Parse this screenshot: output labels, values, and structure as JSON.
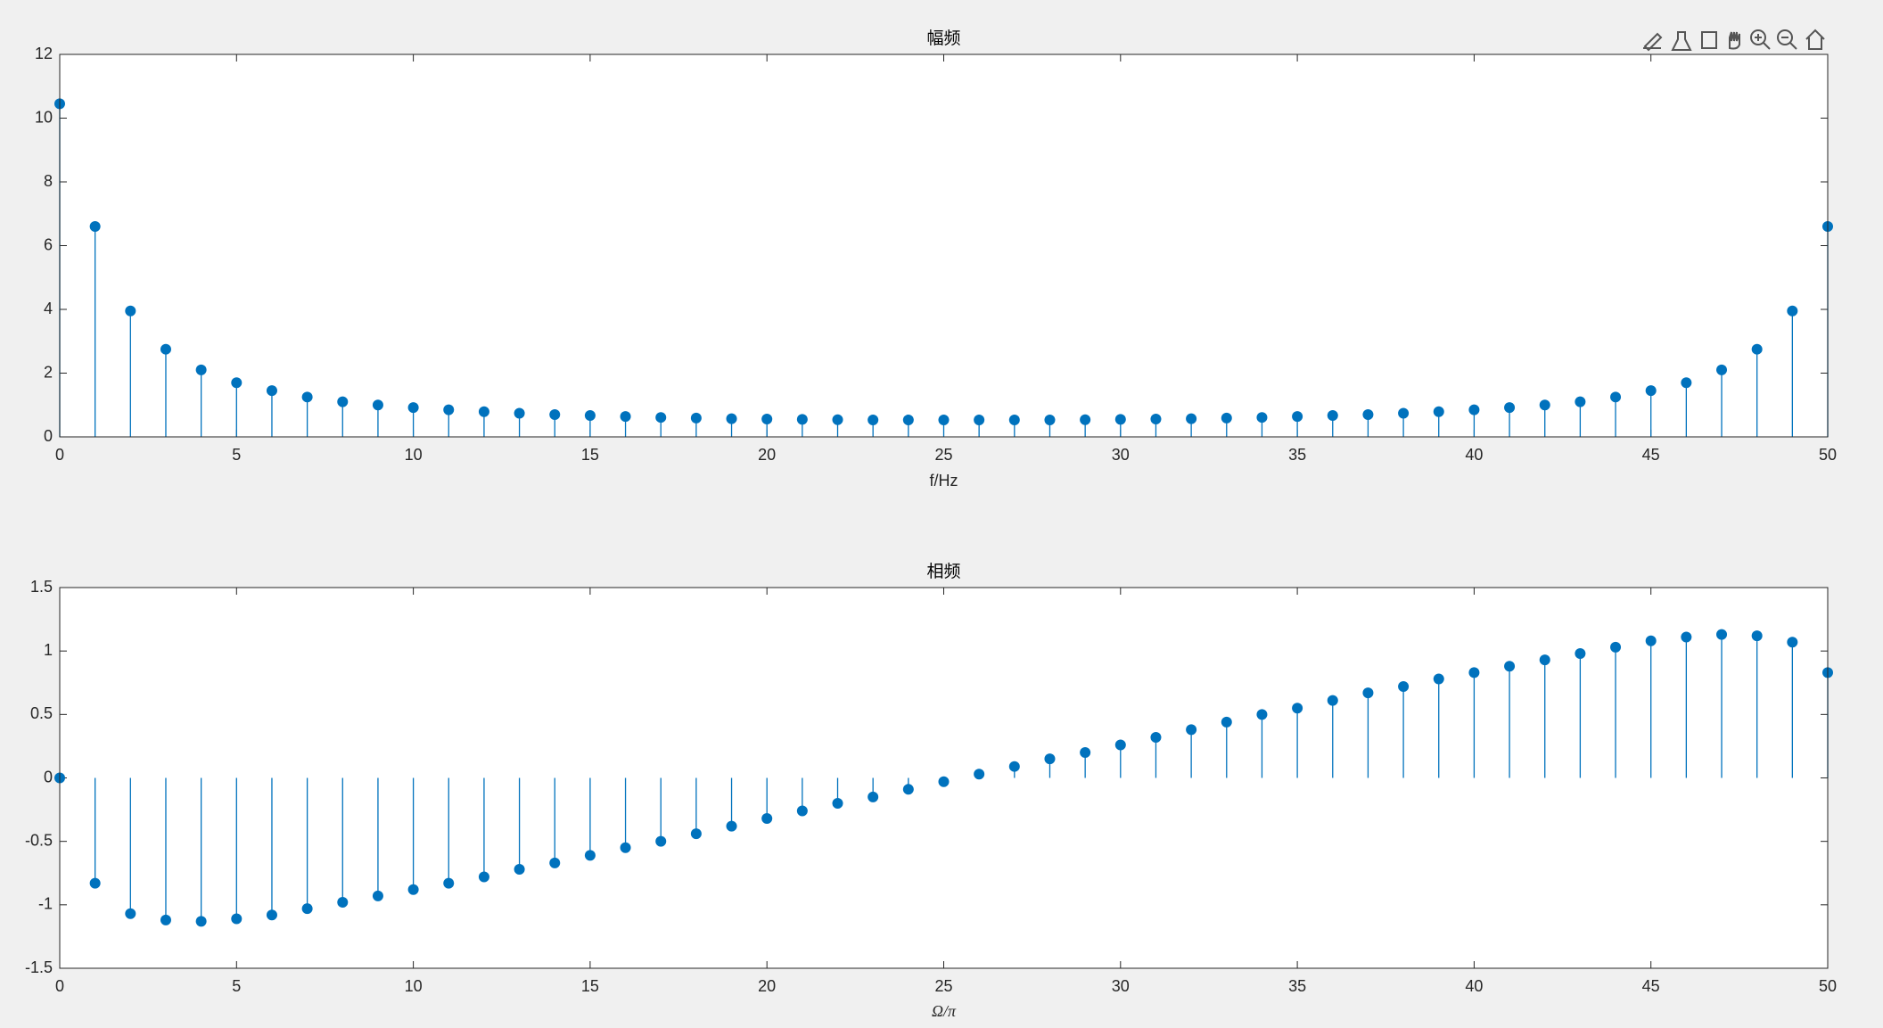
{
  "chart_data": [
    {
      "type": "stem",
      "title": "幅频",
      "xlabel": "f/Hz",
      "color": "#0072bd",
      "x": [
        0,
        1,
        2,
        3,
        4,
        5,
        6,
        7,
        8,
        9,
        10,
        11,
        12,
        13,
        14,
        15,
        16,
        17,
        18,
        19,
        20,
        21,
        22,
        23,
        24,
        25,
        26,
        27,
        28,
        29,
        30,
        31,
        32,
        33,
        34,
        35,
        36,
        37,
        38,
        39,
        40,
        41,
        42,
        43,
        44,
        45,
        46,
        47,
        48,
        49,
        50
      ],
      "values": [
        10.45,
        6.6,
        3.95,
        2.75,
        2.1,
        1.7,
        1.45,
        1.25,
        1.1,
        1.0,
        0.92,
        0.85,
        0.79,
        0.74,
        0.7,
        0.67,
        0.64,
        0.61,
        0.59,
        0.57,
        0.56,
        0.55,
        0.54,
        0.53,
        0.53,
        0.53,
        0.53,
        0.53,
        0.53,
        0.54,
        0.55,
        0.56,
        0.57,
        0.59,
        0.61,
        0.64,
        0.67,
        0.7,
        0.74,
        0.79,
        0.85,
        0.92,
        1.0,
        1.1,
        1.25,
        1.45,
        1.7,
        2.1,
        2.75,
        3.95,
        6.6
      ],
      "xlim": [
        0,
        50
      ],
      "xticks": [
        0,
        5,
        10,
        15,
        20,
        25,
        30,
        35,
        40,
        45,
        50
      ],
      "ylim": [
        0,
        12
      ],
      "yticks": [
        0,
        2,
        4,
        6,
        8,
        10,
        12
      ]
    },
    {
      "type": "stem",
      "title": "相频",
      "xlabel": "Ω/π",
      "color": "#0072bd",
      "x": [
        0,
        1,
        2,
        3,
        4,
        5,
        6,
        7,
        8,
        9,
        10,
        11,
        12,
        13,
        14,
        15,
        16,
        17,
        18,
        19,
        20,
        21,
        22,
        23,
        24,
        25,
        26,
        27,
        28,
        29,
        30,
        31,
        32,
        33,
        34,
        35,
        36,
        37,
        38,
        39,
        40,
        41,
        42,
        43,
        44,
        45,
        46,
        47,
        48,
        49,
        50
      ],
      "values": [
        0,
        -0.83,
        -1.07,
        -1.12,
        -1.13,
        -1.11,
        -1.08,
        -1.03,
        -0.98,
        -0.93,
        -0.88,
        -0.83,
        -0.78,
        -0.72,
        -0.67,
        -0.61,
        -0.55,
        -0.5,
        -0.44,
        -0.38,
        -0.32,
        -0.26,
        -0.2,
        -0.15,
        -0.09,
        -0.03,
        0.03,
        0.09,
        0.15,
        0.2,
        0.26,
        0.32,
        0.38,
        0.44,
        0.5,
        0.55,
        0.61,
        0.67,
        0.72,
        0.78,
        0.83,
        0.88,
        0.93,
        0.98,
        1.03,
        1.08,
        1.11,
        1.13,
        1.12,
        1.07,
        0.83
      ],
      "xlim": [
        0,
        50
      ],
      "xticks": [
        0,
        5,
        10,
        15,
        20,
        25,
        30,
        35,
        40,
        45,
        50
      ],
      "ylim": [
        -1.5,
        1.5
      ],
      "yticks": [
        -1.5,
        -1,
        -0.5,
        0,
        0.5,
        1,
        1.5
      ]
    }
  ]
}
